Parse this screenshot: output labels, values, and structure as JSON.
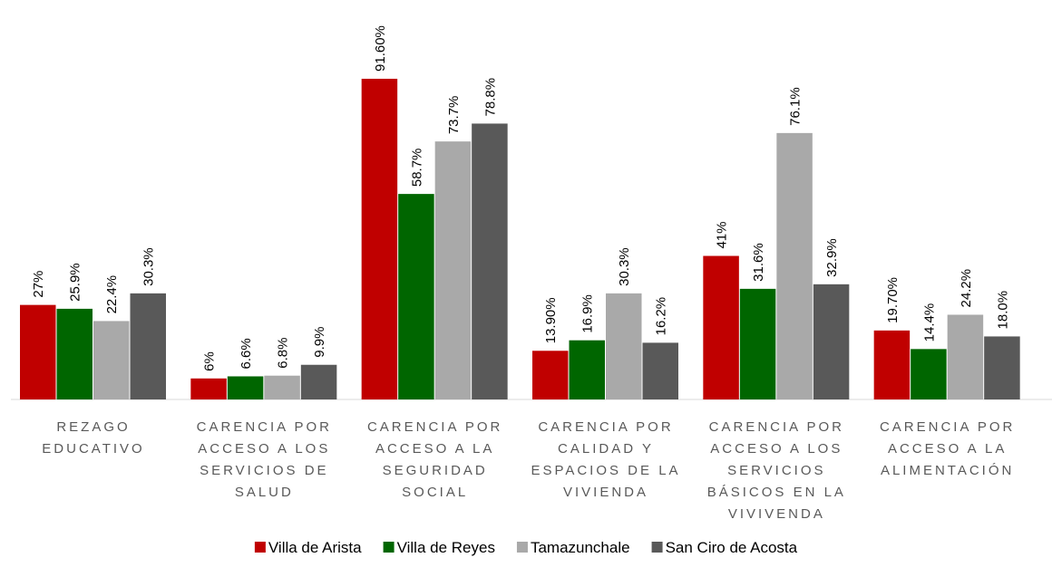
{
  "chart_data": {
    "type": "bar",
    "categories": [
      "REZAGO EDUCATIVO",
      "CARENCIA POR ACCESO A LOS SERVICIOS DE SALUD",
      "CARENCIA POR ACCESO A LA SEGURIDAD SOCIAL",
      "CARENCIA POR CALIDAD Y ESPACIOS DE LA VIVIENDA",
      "CARENCIA POR ACCESO A LOS SERVICIOS BÁSICOS EN LA VIVIVENDA",
      "CARENCIA POR ACCESO A LA ALIMENTACIÓN"
    ],
    "series": [
      {
        "name": "Villa de Arista",
        "color": "#c00000",
        "values": [
          27,
          6,
          91.6,
          13.9,
          41,
          19.7
        ],
        "value_labels": [
          "27%",
          "6%",
          "91.60%",
          "13.90%",
          "41%",
          "19.70%"
        ]
      },
      {
        "name": "Villa de Reyes",
        "color": "#006600",
        "values": [
          25.9,
          6.6,
          58.7,
          16.9,
          31.6,
          14.4
        ],
        "value_labels": [
          "25.9%",
          "6.6%",
          "58.7%",
          "16.9%",
          "31.6%",
          "14.4%"
        ]
      },
      {
        "name": "Tamazunchale",
        "color": "#a9a9a9",
        "values": [
          22.4,
          6.8,
          73.7,
          30.3,
          76.1,
          24.2
        ],
        "value_labels": [
          "22.4%",
          "6.8%",
          "73.7%",
          "30.3%",
          "76.1%",
          "24.2%"
        ]
      },
      {
        "name": "San Ciro de Acosta",
        "color": "#595959",
        "values": [
          30.3,
          9.9,
          78.8,
          16.2,
          32.9,
          18.0
        ],
        "value_labels": [
          "30.3%",
          "9.9%",
          "78.8%",
          "16.2%",
          "32.9%",
          "18.0%"
        ]
      }
    ],
    "ylim": [
      0,
      100
    ],
    "legend": "bottom"
  }
}
